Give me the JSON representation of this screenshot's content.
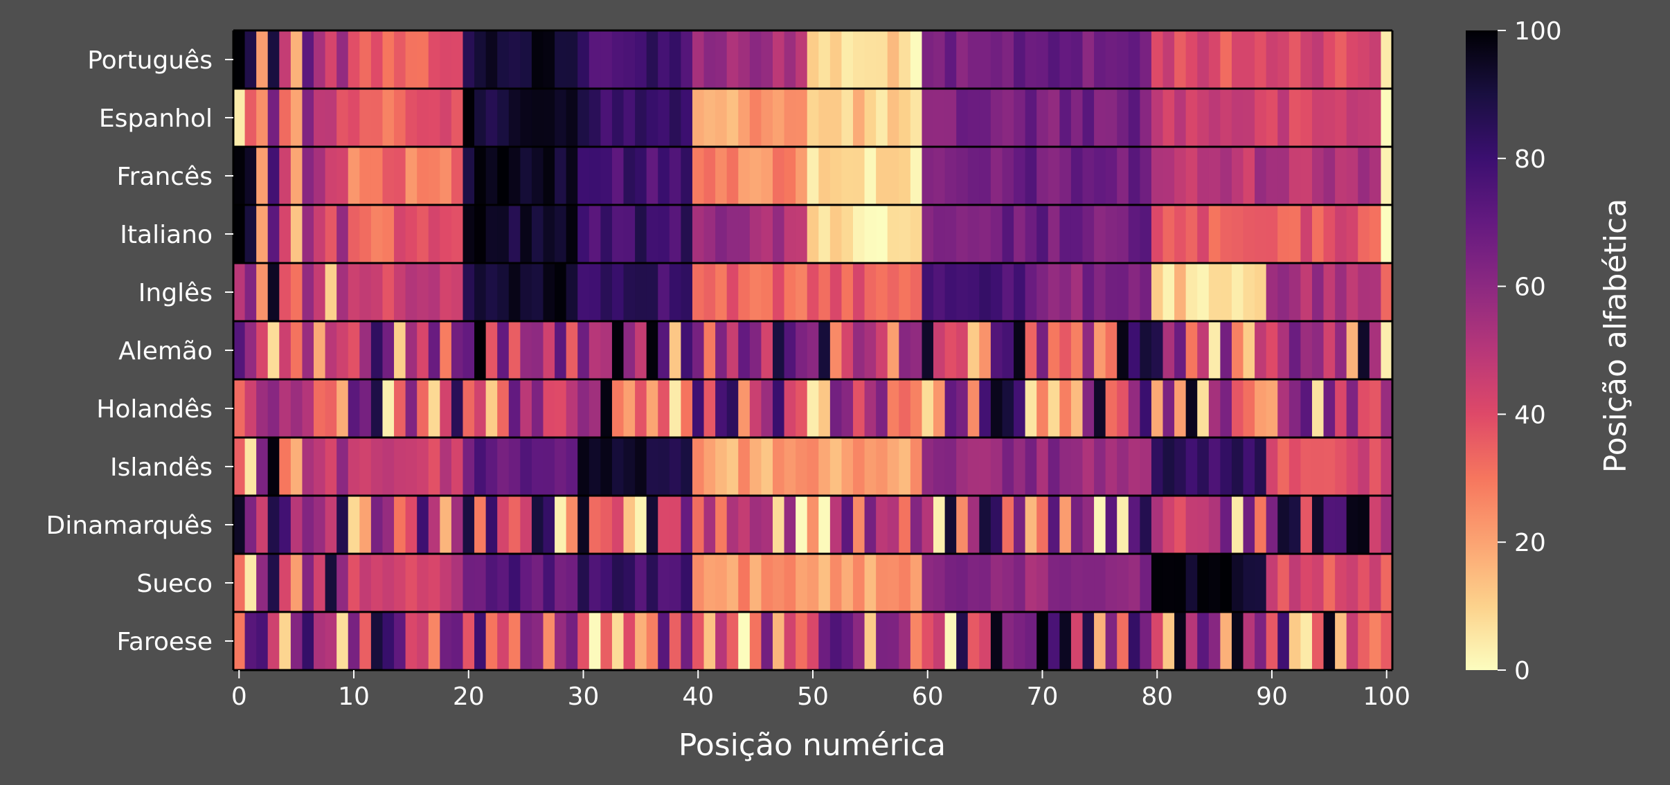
{
  "chart_data": {
    "type": "heatmap",
    "title": "",
    "xlabel": "Posição numérica",
    "ylabel": "",
    "colorbar_label": "Posição alfabética",
    "colormap": "magma_r",
    "xlim": [
      -0.5,
      100.5
    ],
    "vmin": 0,
    "vmax": 100,
    "rows": [
      "Português",
      "Espanhol",
      "Francês",
      "Italiano",
      "Inglês",
      "Alemão",
      "Holandês",
      "Islandês",
      "Dinamarquês",
      "Sueco",
      "Faroese"
    ],
    "x_ticks": [
      0,
      10,
      20,
      30,
      40,
      50,
      60,
      70,
      80,
      90,
      100
    ],
    "x_tick_labels": [
      "0",
      "10",
      "20",
      "30",
      "40",
      "50",
      "60",
      "70",
      "80",
      "90",
      "100"
    ],
    "colorbar_ticks": [
      0,
      20,
      40,
      60,
      80,
      100
    ],
    "colorbar_tick_labels": [
      "0",
      "20",
      "40",
      "60",
      "80",
      "100"
    ],
    "grid": false,
    "background_color": "#4f4f4f",
    "row_separator_color": "#000000"
  }
}
